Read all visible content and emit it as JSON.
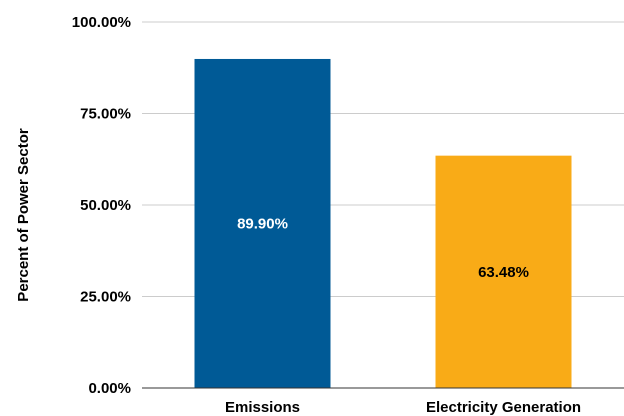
{
  "chart_data": {
    "type": "bar",
    "title": "",
    "xlabel": "",
    "ylabel": "Percent of Power Sector",
    "categories": [
      "Emissions",
      "Electricity Generation"
    ],
    "values": [
      89.9,
      63.48
    ],
    "data_labels": [
      "89.90%",
      "63.48%"
    ],
    "bar_colors": [
      "#005a96",
      "#f9ab17"
    ],
    "data_label_colors": [
      "#ffffff",
      "#000000"
    ],
    "ylim": [
      0,
      100
    ],
    "yticks": [
      0,
      25,
      50,
      75,
      100
    ],
    "ytick_labels": [
      "0.00%",
      "25.00%",
      "50.00%",
      "75.00%",
      "100.00%"
    ],
    "grid": true,
    "legend": "none"
  }
}
